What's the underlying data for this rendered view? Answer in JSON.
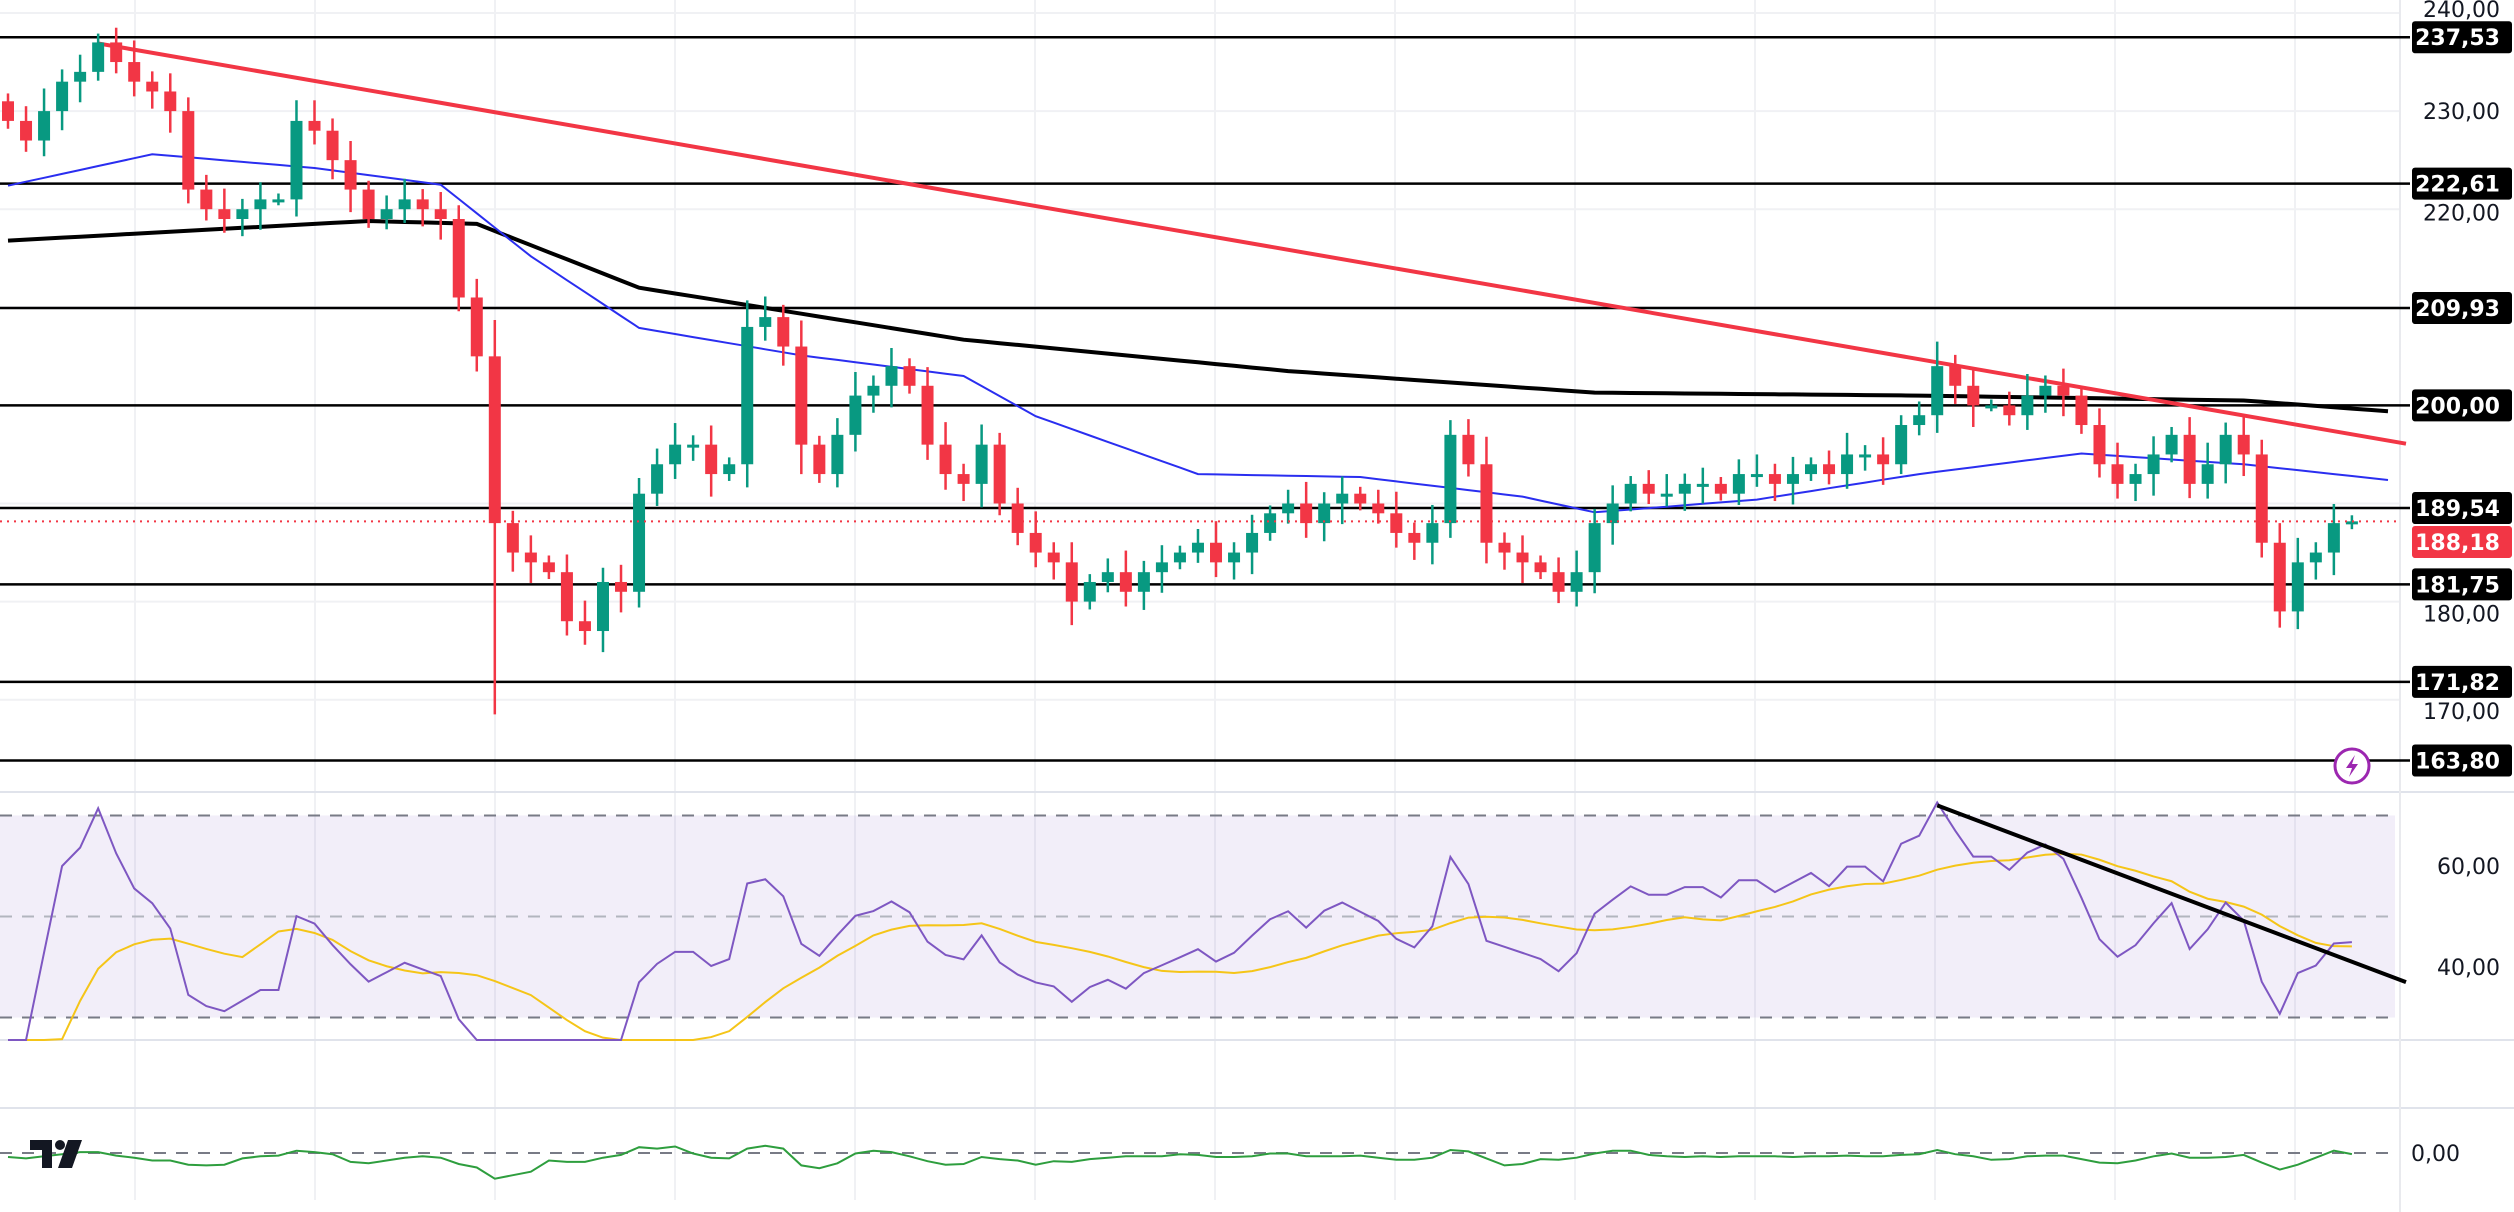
{
  "chart_data": {
    "type": "candlestick",
    "title": "",
    "colors": {
      "up": "#089981",
      "down": "#f23645",
      "ma50": "#2a2ef0",
      "ma200": "#000000",
      "trendline": "#f23645",
      "rsi": "#7e57c2",
      "rsi_ma": "#f5c518",
      "momentum": "#2e9e3e",
      "level": "#000000"
    },
    "closes": [
      229,
      227,
      230,
      233,
      234,
      237,
      235,
      233,
      232,
      230,
      222,
      220,
      219,
      220,
      221,
      221,
      229,
      228,
      225,
      222,
      219,
      220,
      221,
      220,
      219,
      211,
      205,
      188,
      185,
      184,
      183,
      178,
      177,
      182,
      181,
      191,
      194,
      196,
      196,
      193,
      194,
      208,
      209,
      206,
      196,
      193,
      197,
      201,
      202,
      204,
      202,
      196,
      193,
      192,
      196,
      190,
      187,
      185,
      184,
      180,
      182,
      183,
      181,
      183,
      184,
      185,
      186,
      184,
      185,
      187,
      189,
      190,
      188,
      190,
      191,
      190,
      189,
      187,
      186,
      188,
      197,
      194,
      186,
      185,
      184,
      183,
      181,
      183,
      188,
      190,
      192,
      191,
      191,
      192,
      192,
      191,
      193,
      193,
      192,
      193,
      194,
      193,
      195,
      195,
      194,
      198,
      199,
      204,
      202,
      200,
      200,
      199,
      201,
      202,
      201,
      198,
      194,
      192,
      193,
      195,
      197,
      192,
      194,
      197,
      195,
      186,
      179,
      184,
      185,
      188,
      188.18
    ],
    "open_first": 231,
    "notable_low": {
      "index": 27,
      "low": 168.5
    },
    "ma50_anchors": [
      [
        0,
        222.4
      ],
      [
        8,
        225.6
      ],
      [
        17,
        224.2
      ],
      [
        24,
        222.5
      ],
      [
        29,
        215.2
      ],
      [
        35,
        207.9
      ],
      [
        44,
        205.1
      ],
      [
        53,
        203
      ],
      [
        57,
        198.9
      ],
      [
        66,
        193
      ],
      [
        75,
        192.7
      ],
      [
        84,
        190.7
      ],
      [
        88,
        189.1
      ],
      [
        97,
        190.4
      ],
      [
        106,
        193
      ],
      [
        115,
        195.1
      ],
      [
        124,
        194
      ],
      [
        132,
        192.4
      ]
    ],
    "ma200_anchors": [
      [
        0,
        216.8
      ],
      [
        20,
        218.8
      ],
      [
        26,
        218.5
      ],
      [
        35,
        212
      ],
      [
        53,
        206.7
      ],
      [
        71,
        203.5
      ],
      [
        88,
        201.3
      ],
      [
        106,
        201
      ],
      [
        124,
        200.5
      ],
      [
        132,
        199.4
      ]
    ],
    "trendline_price": {
      "from": [
        5,
        236.9
      ],
      "to": [
        133,
        196.1
      ]
    },
    "rsi_trendline": {
      "from": [
        107,
        72
      ],
      "to": [
        133,
        37
      ]
    },
    "horizontal_levels": [
      "237,53",
      "222,61",
      "209,93",
      "200,00",
      "189,54",
      "181,75",
      "171,82",
      "163,80"
    ],
    "horizontal_level_values": [
      237.53,
      222.61,
      209.93,
      200.0,
      189.54,
      181.75,
      171.82,
      163.8
    ],
    "last_price": {
      "label": "188,18",
      "value": 188.18
    },
    "price_axis": {
      "ticks": [
        "240,00",
        "230,00",
        "220,00",
        "180,00",
        "170,00"
      ],
      "tick_values": [
        240,
        230,
        220,
        180,
        170
      ],
      "ylim": [
        161,
        241
      ]
    },
    "rsi_axis": {
      "ticks": [
        "60,00",
        "40,00"
      ],
      "tick_values": [
        60,
        40
      ],
      "bands": [
        70,
        50,
        30
      ],
      "period": 14,
      "ma_period": 14
    },
    "momentum_axis": {
      "ticks": [
        "0,00"
      ],
      "tick_values": [
        0
      ]
    }
  }
}
